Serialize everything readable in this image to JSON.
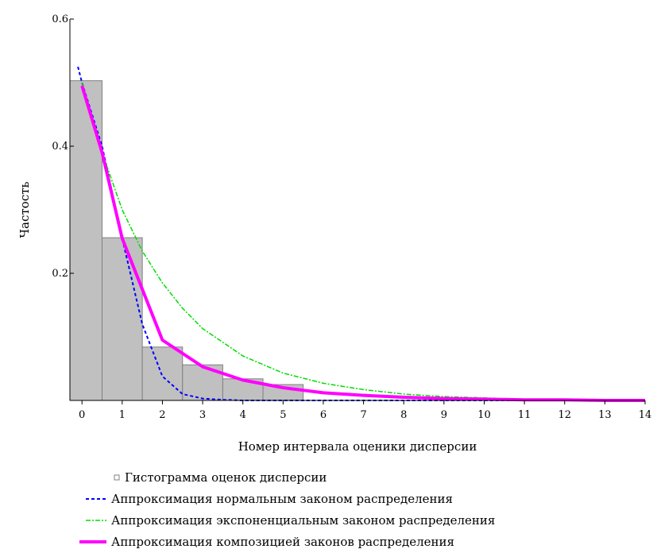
{
  "chart_data": {
    "type": "bar",
    "xlabel": "Номер интервала оценики дисперсии",
    "ylabel": "Частость",
    "xlim": [
      -0.3,
      14
    ],
    "ylim": [
      0,
      0.6
    ],
    "x_ticks": [
      "0",
      "1",
      "2",
      "3",
      "4",
      "5",
      "6",
      "7",
      "8",
      "9",
      "10",
      "11",
      "12",
      "13",
      "14"
    ],
    "y_ticks": [
      {
        "value": 0.2,
        "label": "0.2"
      },
      {
        "value": 0.4,
        "label": "0.4"
      },
      {
        "value": 0.6,
        "label": "0.6"
      }
    ],
    "histogram": {
      "name": "Гистограмма оценок дисперсии",
      "color": "#c0c0c0",
      "edge_color": "#808080",
      "bin_width": 1,
      "categories": [
        0,
        1,
        2,
        3,
        4,
        5
      ],
      "values": [
        0.503,
        0.256,
        0.084,
        0.056,
        0.034,
        0.025
      ]
    },
    "series": [
      {
        "name": "Аппроксимация нормальным законом распределения",
        "color": "#0000ff",
        "style": "dashed",
        "x": [
          -0.1,
          0,
          0.5,
          1,
          1.5,
          2,
          2.5,
          3,
          3.5,
          4,
          5,
          6,
          7,
          8,
          9,
          10,
          11,
          12,
          13,
          14
        ],
        "y": [
          0.525,
          0.5,
          0.4,
          0.255,
          0.12,
          0.038,
          0.01,
          0.003,
          0.001,
          0,
          0,
          0,
          0,
          0,
          0,
          0,
          0,
          0,
          0,
          0
        ]
      },
      {
        "name": "Аппроксимация экспоненциальным законом распределения",
        "color": "#00dd00",
        "style": "dashdot",
        "x": [
          0,
          0.5,
          1,
          1.5,
          2,
          2.5,
          3,
          4,
          5,
          6,
          7,
          8,
          9,
          10,
          11,
          12,
          13,
          14
        ],
        "y": [
          0.5,
          0.39,
          0.3,
          0.235,
          0.185,
          0.145,
          0.113,
          0.07,
          0.043,
          0.027,
          0.017,
          0.01,
          0.006,
          0.004,
          0.002,
          0.001,
          0.001,
          0
        ]
      },
      {
        "name": "Аппроксимация композицией законов распределения",
        "color": "#ff00ff",
        "style": "solid",
        "x": [
          0,
          0.5,
          1,
          1.5,
          2,
          3,
          4,
          5,
          6,
          7,
          8,
          9,
          10,
          11,
          12,
          13,
          14
        ],
        "y": [
          0.495,
          0.39,
          0.255,
          0.175,
          0.095,
          0.053,
          0.032,
          0.02,
          0.012,
          0.008,
          0.005,
          0.003,
          0.002,
          0.001,
          0.001,
          0,
          0
        ]
      }
    ],
    "legend_position": "bottom-left"
  }
}
